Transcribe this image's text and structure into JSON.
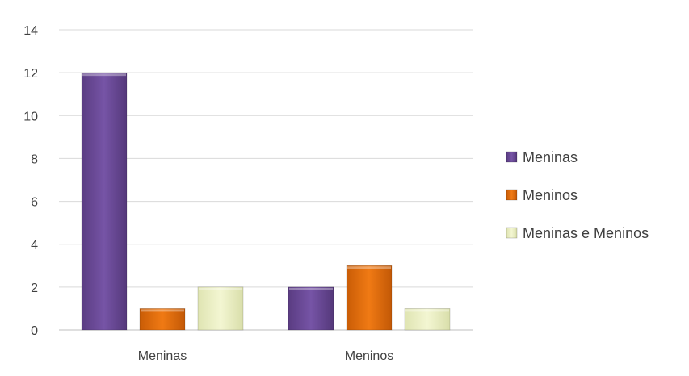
{
  "chart_data": {
    "type": "bar",
    "categories": [
      "Meninas",
      "Meninos"
    ],
    "series": [
      {
        "name": "Meninas",
        "values": [
          12,
          2
        ],
        "color": "#6b4a96"
      },
      {
        "name": "Meninos",
        "values": [
          1,
          3
        ],
        "color": "#e46c0a"
      },
      {
        "name": "Meninas e Meninos",
        "values": [
          2,
          1
        ],
        "color": "#ecf0c4"
      }
    ],
    "title": "",
    "xlabel": "",
    "ylabel": "",
    "ylim": [
      0,
      14
    ],
    "yticks": [
      "0",
      "2",
      "4",
      "6",
      "8",
      "10",
      "12",
      "14"
    ],
    "grid": true,
    "legend_position": "right"
  }
}
